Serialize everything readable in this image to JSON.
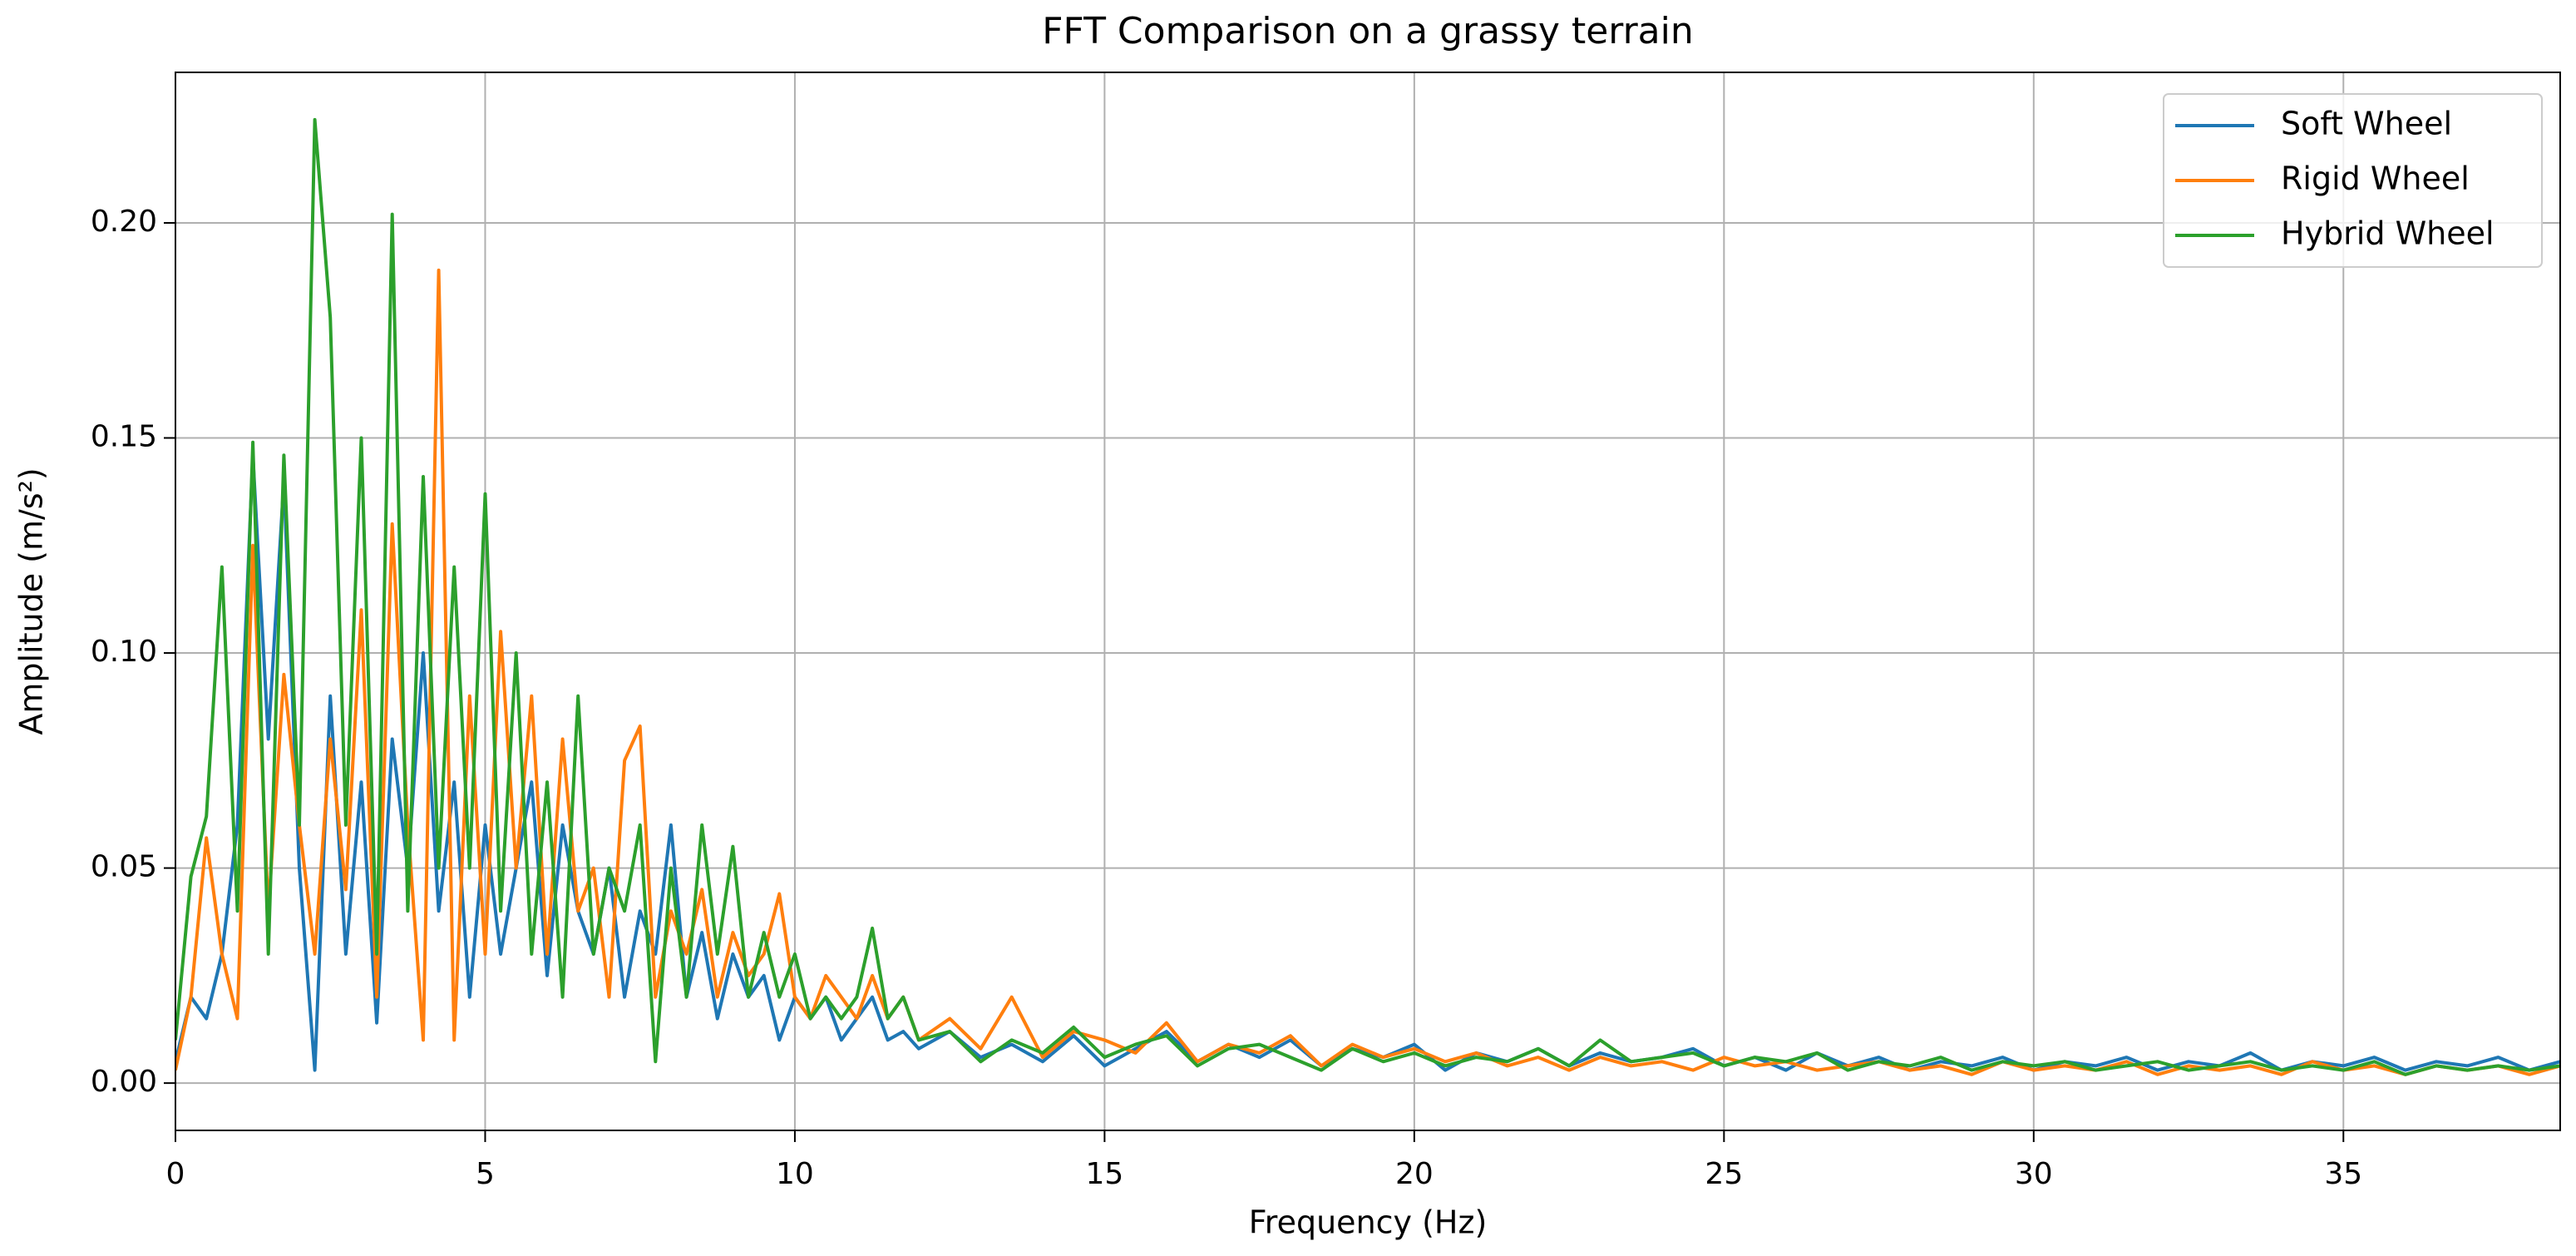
{
  "chart_data": {
    "type": "line",
    "title": "FFT Comparison on a grassy terrain",
    "x_label": "Frequency (Hz)",
    "y_label": "Amplitude (m/s²)",
    "x": [
      0,
      0.25,
      0.5,
      0.75,
      1,
      1.25,
      1.5,
      1.75,
      2,
      2.25,
      2.5,
      2.75,
      3,
      3.25,
      3.5,
      3.75,
      4,
      4.25,
      4.5,
      4.75,
      5,
      5.25,
      5.5,
      5.75,
      6,
      6.25,
      6.5,
      6.75,
      7,
      7.25,
      7.5,
      7.75,
      8,
      8.25,
      8.5,
      8.75,
      9,
      9.25,
      9.5,
      9.75,
      10,
      10.25,
      10.5,
      10.75,
      11,
      11.25,
      11.5,
      11.75,
      12,
      12.5,
      13,
      13.5,
      14,
      14.5,
      15,
      15.5,
      16,
      16.5,
      17,
      17.5,
      18,
      18.5,
      19,
      19.5,
      20,
      20.5,
      21,
      21.5,
      22,
      22.5,
      23,
      23.5,
      24,
      24.5,
      25,
      25.5,
      26,
      26.5,
      27,
      27.5,
      28,
      28.5,
      29,
      29.5,
      30,
      30.5,
      31,
      31.5,
      32,
      32.5,
      33,
      33.5,
      34,
      34.5,
      35,
      35.5,
      36,
      36.5,
      37,
      37.5,
      38,
      38.5
    ],
    "series": [
      {
        "name": "Soft Wheel",
        "color": "#1f77b4",
        "values": [
          0.005,
          0.02,
          0.015,
          0.03,
          0.06,
          0.146,
          0.08,
          0.14,
          0.05,
          0.003,
          0.09,
          0.03,
          0.07,
          0.014,
          0.08,
          0.05,
          0.1,
          0.04,
          0.07,
          0.02,
          0.06,
          0.03,
          0.05,
          0.07,
          0.025,
          0.06,
          0.04,
          0.03,
          0.05,
          0.02,
          0.04,
          0.03,
          0.06,
          0.02,
          0.035,
          0.015,
          0.03,
          0.02,
          0.025,
          0.01,
          0.02,
          0.015,
          0.02,
          0.01,
          0.015,
          0.02,
          0.01,
          0.012,
          0.008,
          0.012,
          0.006,
          0.009,
          0.005,
          0.011,
          0.004,
          0.008,
          0.012,
          0.005,
          0.009,
          0.006,
          0.01,
          0.004,
          0.008,
          0.006,
          0.009,
          0.003,
          0.007,
          0.005,
          0.008,
          0.004,
          0.007,
          0.005,
          0.006,
          0.008,
          0.004,
          0.006,
          0.003,
          0.007,
          0.004,
          0.006,
          0.003,
          0.005,
          0.004,
          0.006,
          0.003,
          0.005,
          0.004,
          0.006,
          0.003,
          0.005,
          0.004,
          0.007,
          0.003,
          0.005,
          0.004,
          0.006,
          0.003,
          0.005,
          0.004,
          0.006,
          0.003,
          0.005
        ]
      },
      {
        "name": "Rigid Wheel",
        "color": "#ff7f0e",
        "values": [
          0.003,
          0.02,
          0.057,
          0.03,
          0.015,
          0.125,
          0.04,
          0.095,
          0.06,
          0.03,
          0.08,
          0.045,
          0.11,
          0.02,
          0.13,
          0.06,
          0.01,
          0.189,
          0.01,
          0.09,
          0.03,
          0.105,
          0.05,
          0.09,
          0.03,
          0.08,
          0.04,
          0.05,
          0.02,
          0.075,
          0.083,
          0.02,
          0.04,
          0.03,
          0.045,
          0.02,
          0.035,
          0.025,
          0.03,
          0.044,
          0.02,
          0.015,
          0.025,
          0.02,
          0.015,
          0.025,
          0.015,
          0.02,
          0.01,
          0.015,
          0.008,
          0.02,
          0.006,
          0.012,
          0.01,
          0.007,
          0.014,
          0.005,
          0.009,
          0.007,
          0.011,
          0.004,
          0.009,
          0.006,
          0.008,
          0.005,
          0.007,
          0.004,
          0.006,
          0.003,
          0.006,
          0.004,
          0.005,
          0.003,
          0.006,
          0.004,
          0.005,
          0.003,
          0.004,
          0.005,
          0.003,
          0.004,
          0.002,
          0.005,
          0.003,
          0.004,
          0.003,
          0.005,
          0.002,
          0.004,
          0.003,
          0.004,
          0.002,
          0.005,
          0.003,
          0.004,
          0.002,
          0.004,
          0.003,
          0.004,
          0.002,
          0.004
        ]
      },
      {
        "name": "Hybrid Wheel",
        "color": "#2ca02c",
        "values": [
          0.01,
          0.048,
          0.062,
          0.12,
          0.04,
          0.149,
          0.03,
          0.146,
          0.06,
          0.224,
          0.178,
          0.06,
          0.15,
          0.03,
          0.202,
          0.04,
          0.141,
          0.05,
          0.12,
          0.05,
          0.137,
          0.04,
          0.1,
          0.03,
          0.07,
          0.02,
          0.09,
          0.03,
          0.05,
          0.04,
          0.06,
          0.005,
          0.05,
          0.02,
          0.06,
          0.03,
          0.055,
          0.02,
          0.035,
          0.02,
          0.03,
          0.015,
          0.02,
          0.015,
          0.02,
          0.036,
          0.015,
          0.02,
          0.01,
          0.012,
          0.005,
          0.01,
          0.007,
          0.013,
          0.006,
          0.009,
          0.011,
          0.004,
          0.008,
          0.009,
          0.006,
          0.003,
          0.008,
          0.005,
          0.007,
          0.004,
          0.006,
          0.005,
          0.008,
          0.004,
          0.01,
          0.005,
          0.006,
          0.007,
          0.004,
          0.006,
          0.005,
          0.007,
          0.003,
          0.005,
          0.004,
          0.006,
          0.003,
          0.005,
          0.004,
          0.005,
          0.003,
          0.004,
          0.005,
          0.003,
          0.004,
          0.005,
          0.003,
          0.004,
          0.003,
          0.005,
          0.002,
          0.004,
          0.003,
          0.004,
          0.003,
          0.004
        ]
      }
    ],
    "xlim": [
      0,
      38.5
    ],
    "ylim": [
      -0.011,
      0.235
    ],
    "xticks": [
      0,
      5,
      10,
      15,
      20,
      25,
      30,
      35
    ],
    "yticks": [
      {
        "value": 0,
        "label": "0.00"
      },
      0.05,
      {
        "value": 0.1,
        "label": "0.10"
      },
      0.15,
      {
        "value": 0.2,
        "label": "0.20"
      }
    ],
    "grid": true,
    "legend": "upper right"
  }
}
